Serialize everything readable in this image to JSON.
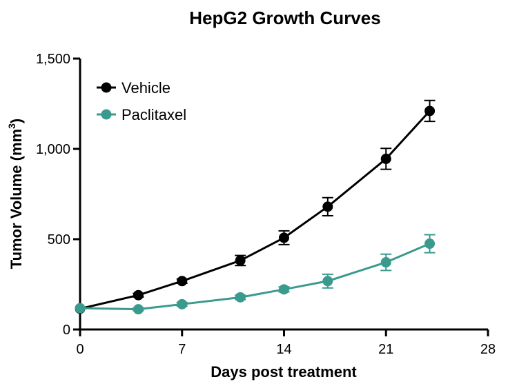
{
  "chart_data": {
    "type": "line",
    "title": "HepG2 Growth Curves",
    "xlabel": "Days post treatment",
    "ylabel_main": "Tumor Volume (mm",
    "ylabel_sup": "3",
    "ylabel_close": ")",
    "xlim": [
      0,
      28
    ],
    "ylim": [
      0,
      1500
    ],
    "x_ticks": [
      0,
      7,
      14,
      21,
      28
    ],
    "x_tick_labels": [
      "0",
      "7",
      "14",
      "21",
      "28"
    ],
    "y_ticks": [
      0,
      500,
      1000,
      1500
    ],
    "y_tick_labels": [
      "0",
      "500",
      "1,000",
      "1,500"
    ],
    "legend_position": "top-left",
    "series": [
      {
        "name": "Vehicle",
        "color": "#000000",
        "x": [
          0,
          4,
          7,
          11,
          14,
          17,
          21,
          24
        ],
        "y": [
          115,
          190,
          268,
          382,
          508,
          680,
          945,
          1210
        ],
        "err": [
          0,
          10,
          12,
          28,
          38,
          50,
          58,
          58
        ]
      },
      {
        "name": "Paclitaxel",
        "color": "#3a9a8e",
        "x": [
          0,
          4,
          7,
          11,
          14,
          17,
          21,
          24
        ],
        "y": [
          118,
          112,
          140,
          178,
          222,
          268,
          372,
          475
        ],
        "err": [
          0,
          8,
          10,
          12,
          14,
          38,
          45,
          50
        ]
      }
    ]
  }
}
